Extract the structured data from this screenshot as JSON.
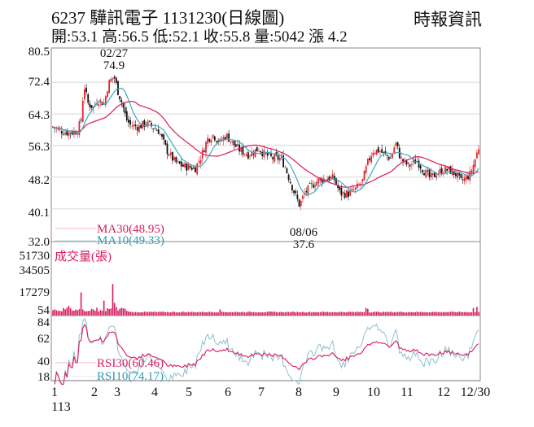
{
  "header": {
    "title": "6237  驊訊電子 1131230(日線圖)",
    "brand": "時報資訊",
    "stats": "開:53.1 高:56.5 低:52.1 收:55.8 量:5042 漲 4.2"
  },
  "colors": {
    "up": "#e0282e",
    "down": "#111111",
    "ma30": "#d81b60",
    "ma10": "#3fa9c4",
    "rsi30": "#d81b60",
    "rsi10": "#7fb8c9",
    "volume": "#d81b60",
    "grid": "#d6d6d6"
  },
  "price_panel": {
    "y_ticks": [
      "80.5",
      "72.4",
      "64.3",
      "56.3",
      "48.2",
      "40.1",
      "32.0"
    ],
    "annotations": {
      "high_date": "02/27",
      "high_value": "74.9",
      "low_date": "08/06",
      "low_value": "37.6"
    },
    "legend": {
      "ma30": "MA30(48.95)",
      "ma10": "MA10(49.33)"
    }
  },
  "volume_panel": {
    "title": "成交量(張)",
    "y_ticks": [
      "51730",
      "34505",
      "17279",
      "54"
    ]
  },
  "rsi_panel": {
    "y_ticks": [
      "84",
      "62",
      "40",
      "18"
    ],
    "legend": {
      "rsi30": "RSI30(60.46)",
      "rsi10": "RSI10(74.17)"
    }
  },
  "x_axis": {
    "ticks": [
      "1",
      "2",
      "3",
      "4",
      "5",
      "6",
      "7",
      "8",
      "9",
      "10",
      "11",
      "12",
      "12/30"
    ],
    "year_label": "113"
  },
  "chart_data": {
    "type": "candlestick",
    "title": "6237 驊訊電子 1131230(日線圖)",
    "subtitle": "開:53.1 高:56.5 低:52.1 收:55.8 量:5042 漲 4.2",
    "xlabel": "113 (month)",
    "ylabel": "",
    "ylim": [
      32.0,
      80.5
    ],
    "x_ticks": [
      "1",
      "2",
      "3",
      "4",
      "5",
      "6",
      "7",
      "8",
      "9",
      "10",
      "11",
      "12",
      "12/30"
    ],
    "y_ticks": [
      80.5,
      72.4,
      64.3,
      56.3,
      48.2,
      40.1,
      32.0
    ],
    "grid": true,
    "legend": [
      "MA30(48.95)",
      "MA10(49.33)"
    ],
    "annotations": [
      {
        "label": "02/27 74.9",
        "type": "high"
      },
      {
        "label": "08/06 37.6",
        "type": "low"
      }
    ],
    "last_bar": {
      "open": 53.1,
      "high": 56.5,
      "low": 52.1,
      "close": 55.8,
      "volume": 5042,
      "change": 4.2
    },
    "monthly_close_approx": {
      "x": [
        "1",
        "2",
        "3",
        "4",
        "5",
        "6",
        "7",
        "8",
        "9",
        "10",
        "11",
        "12",
        "12/30"
      ],
      "close": [
        60.5,
        66.0,
        69.0,
        51.0,
        53.0,
        57.5,
        54.0,
        44.0,
        43.0,
        52.0,
        52.0,
        48.0,
        55.8
      ]
    },
    "series": [
      {
        "name": "MA30",
        "last": 48.95
      },
      {
        "name": "MA10",
        "last": 49.33
      },
      {
        "name": "RSI30",
        "last": 60.46
      },
      {
        "name": "RSI10",
        "last": 74.17
      }
    ],
    "sub_panels": [
      {
        "name": "成交量(張)",
        "type": "bar",
        "y_ticks": [
          51730,
          34505,
          17279,
          54
        ],
        "peak": 42000
      },
      {
        "name": "RSI",
        "type": "line",
        "y_ticks": [
          84,
          62,
          40,
          18
        ]
      }
    ]
  }
}
